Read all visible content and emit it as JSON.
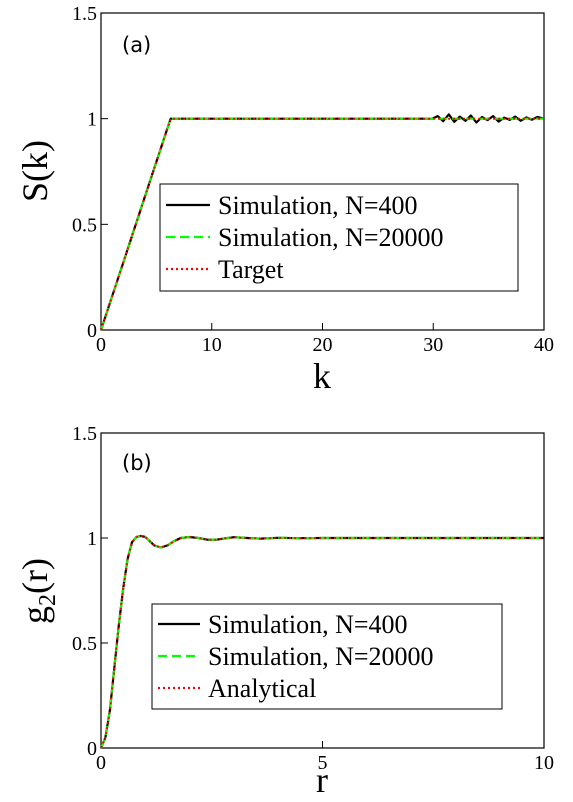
{
  "chart_data": [
    {
      "type": "line",
      "panel_label": "(a)",
      "xlabel": "k",
      "ylabel": "S(k)",
      "xlim": [
        0,
        40
      ],
      "ylim": [
        0,
        1.5
      ],
      "xticks": [
        "0",
        "10",
        "20",
        "30",
        "40"
      ],
      "yticks": [
        "0",
        "0.5",
        "1",
        "1.5"
      ],
      "grid": false,
      "legend_position": "center",
      "series": [
        {
          "name": "Simulation, N=400",
          "style": "solid",
          "color": "#000000",
          "x": [
            0,
            2,
            4,
            6.28,
            10,
            20,
            29.9,
            30.4,
            30.9,
            31.4,
            31.9,
            32.4,
            32.9,
            33.4,
            33.9,
            34.4,
            34.9,
            35.4,
            35.9,
            36.4,
            36.9,
            37.4,
            37.9,
            38.4,
            38.9,
            39.4,
            40
          ],
          "y": [
            0,
            0.318,
            0.637,
            1.0,
            1.0,
            1.0,
            1.0,
            1.012,
            0.988,
            1.02,
            0.985,
            1.01,
            0.99,
            1.015,
            0.982,
            1.008,
            0.993,
            1.012,
            0.986,
            1.005,
            0.994,
            1.01,
            0.99,
            1.006,
            0.995,
            1.008,
            1.0
          ]
        },
        {
          "name": "Simulation, N=20000",
          "style": "dashed",
          "color": "#00ff00",
          "x": [
            0,
            2,
            4,
            6.28,
            10,
            20,
            30,
            40
          ],
          "y": [
            0,
            0.318,
            0.637,
            1.0,
            1.0,
            1.0,
            1.0,
            1.0
          ]
        },
        {
          "name": "Target",
          "style": "dotted",
          "color": "#ff0000",
          "x": [
            0,
            6.28,
            40
          ],
          "y": [
            0,
            1.0,
            1.0
          ]
        }
      ]
    },
    {
      "type": "line",
      "panel_label": "(b)",
      "xlabel": "r",
      "ylabel": "g2(r)",
      "xlim": [
        0,
        10
      ],
      "ylim": [
        0,
        1.5
      ],
      "xticks": [
        "0",
        "5",
        "10"
      ],
      "yticks": [
        "0",
        "0.5",
        "1",
        "1.5"
      ],
      "grid": false,
      "legend_position": "center-bottom",
      "series": [
        {
          "name": "Simulation, N=400",
          "style": "solid",
          "color": "#000000",
          "x": [
            0,
            0.1,
            0.2,
            0.3,
            0.4,
            0.5,
            0.6,
            0.7,
            0.8,
            0.9,
            1.0,
            1.1,
            1.2,
            1.35,
            1.5,
            1.65,
            1.8,
            2.0,
            2.2,
            2.4,
            2.6,
            2.8,
            3.0,
            3.3,
            3.6,
            4.0,
            4.5,
            5.0,
            6.0,
            7.0,
            8.0,
            9.0,
            10.0
          ],
          "y": [
            0.0,
            0.05,
            0.18,
            0.38,
            0.58,
            0.76,
            0.9,
            0.98,
            1.005,
            1.01,
            1.005,
            0.985,
            0.965,
            0.955,
            0.965,
            0.985,
            1.0,
            1.005,
            1.0,
            0.992,
            0.992,
            0.998,
            1.004,
            1.0,
            0.997,
            1.001,
            0.999,
            1.0,
            1.0,
            1.0,
            1.0,
            1.0,
            1.0
          ]
        },
        {
          "name": "Simulation, N=20000",
          "style": "dashed",
          "color": "#00ff00",
          "x": [
            0,
            0.1,
            0.2,
            0.3,
            0.4,
            0.5,
            0.6,
            0.7,
            0.8,
            0.9,
            1.0,
            1.1,
            1.2,
            1.35,
            1.5,
            1.65,
            1.8,
            2.0,
            2.2,
            2.4,
            2.6,
            2.8,
            3.0,
            3.3,
            3.6,
            4.0,
            4.5,
            5.0,
            6.0,
            7.0,
            8.0,
            9.0,
            10.0
          ],
          "y": [
            0.0,
            0.05,
            0.18,
            0.38,
            0.58,
            0.76,
            0.9,
            0.98,
            1.005,
            1.01,
            1.005,
            0.985,
            0.965,
            0.955,
            0.965,
            0.985,
            1.0,
            1.005,
            1.0,
            0.992,
            0.992,
            0.998,
            1.004,
            1.0,
            0.997,
            1.001,
            0.999,
            1.0,
            1.0,
            1.0,
            1.0,
            1.0,
            1.0
          ]
        },
        {
          "name": "Analytical",
          "style": "dotted",
          "color": "#ff0000",
          "x": [
            0,
            0.1,
            0.2,
            0.3,
            0.4,
            0.5,
            0.6,
            0.7,
            0.8,
            0.9,
            1.0,
            1.1,
            1.2,
            1.35,
            1.5,
            1.65,
            1.8,
            2.0,
            2.2,
            2.4,
            2.6,
            2.8,
            3.0,
            3.3,
            3.6,
            4.0,
            4.5,
            5.0,
            6.0,
            7.0,
            8.0,
            9.0,
            10.0
          ],
          "y": [
            0.0,
            0.05,
            0.18,
            0.38,
            0.58,
            0.76,
            0.9,
            0.98,
            1.005,
            1.01,
            1.005,
            0.985,
            0.965,
            0.955,
            0.965,
            0.985,
            1.0,
            1.005,
            1.0,
            0.992,
            0.992,
            0.998,
            1.004,
            1.0,
            0.997,
            1.001,
            0.999,
            1.0,
            1.0,
            1.0,
            1.0,
            1.0,
            1.0
          ]
        }
      ]
    }
  ]
}
